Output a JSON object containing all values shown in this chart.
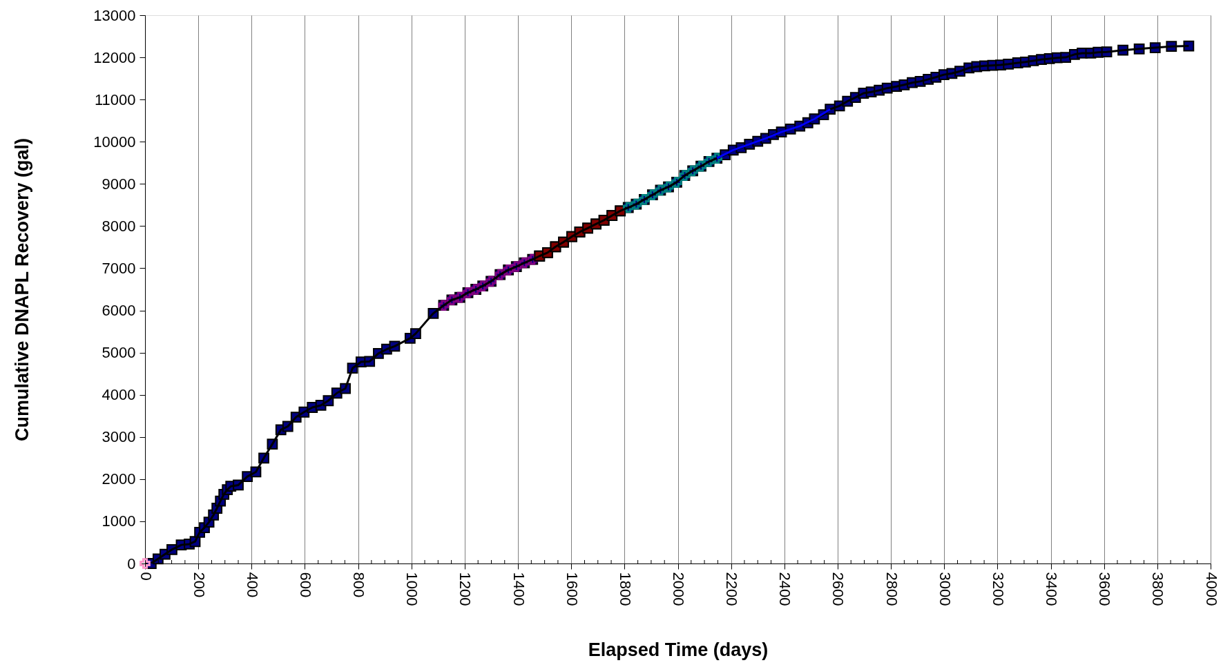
{
  "chart_data": {
    "type": "line",
    "xlabel": "Elapsed Time (days)",
    "ylabel": "Cumulative DNAPL Recovery (gal)",
    "xlim": [
      0,
      4000
    ],
    "ylim": [
      0,
      13000
    ],
    "xticks": [
      0,
      {
        "value": 50,
        "label": null
      },
      {
        "value": 100,
        "label": null
      },
      {
        "value": 150,
        "label": null
      },
      200,
      {
        "value": 250,
        "label": null
      },
      {
        "value": 300,
        "label": null
      },
      {
        "value": 350,
        "label": null
      },
      400,
      {
        "value": 450,
        "label": null
      },
      {
        "value": 500,
        "label": null
      },
      {
        "value": 550,
        "label": null
      },
      600,
      {
        "value": 650,
        "label": null
      },
      {
        "value": 700,
        "label": null
      },
      {
        "value": 750,
        "label": null
      },
      800,
      {
        "value": 850,
        "label": null
      },
      {
        "value": 900,
        "label": null
      },
      {
        "value": 950,
        "label": null
      },
      1000,
      {
        "value": 1050,
        "label": null
      },
      {
        "value": 1100,
        "label": null
      },
      {
        "value": 1150,
        "label": null
      },
      1200,
      {
        "value": 1250,
        "label": null
      },
      {
        "value": 1300,
        "label": null
      },
      {
        "value": 1350,
        "label": null
      },
      1400,
      {
        "value": 1450,
        "label": null
      },
      {
        "value": 1500,
        "label": null
      },
      {
        "value": 1550,
        "label": null
      },
      1600,
      {
        "value": 1650,
        "label": null
      },
      {
        "value": 1700,
        "label": null
      },
      {
        "value": 1750,
        "label": null
      },
      1800,
      {
        "value": 1850,
        "label": null
      },
      {
        "value": 1900,
        "label": null
      },
      {
        "value": 1950,
        "label": null
      },
      2000,
      {
        "value": 2050,
        "label": null
      },
      {
        "value": 2100,
        "label": null
      },
      {
        "value": 2150,
        "label": null
      },
      2200,
      {
        "value": 2250,
        "label": null
      },
      {
        "value": 2300,
        "label": null
      },
      {
        "value": 2350,
        "label": null
      },
      2400,
      {
        "value": 2450,
        "label": null
      },
      {
        "value": 2500,
        "label": null
      },
      {
        "value": 2550,
        "label": null
      },
      2600,
      {
        "value": 2650,
        "label": null
      },
      {
        "value": 2700,
        "label": null
      },
      {
        "value": 2750,
        "label": null
      },
      2800,
      {
        "value": 2850,
        "label": null
      },
      {
        "value": 2900,
        "label": null
      },
      {
        "value": 2950,
        "label": null
      },
      3000,
      {
        "value": 3050,
        "label": null
      },
      {
        "value": 3100,
        "label": null
      },
      {
        "value": 3150,
        "label": null
      },
      3200,
      {
        "value": 3250,
        "label": null
      },
      {
        "value": 3300,
        "label": null
      },
      {
        "value": 3350,
        "label": null
      },
      3400,
      {
        "value": 3450,
        "label": null
      },
      {
        "value": 3500,
        "label": null
      },
      {
        "value": 3550,
        "label": null
      },
      3600,
      {
        "value": 3650,
        "label": null
      },
      {
        "value": 3700,
        "label": null
      },
      {
        "value": 3750,
        "label": null
      },
      3800,
      {
        "value": 3850,
        "label": null
      },
      {
        "value": 3900,
        "label": null
      },
      {
        "value": 3950,
        "label": null
      },
      4000
    ],
    "yticks": [
      0,
      1000,
      2000,
      3000,
      4000,
      5000,
      6000,
      7000,
      8000,
      9000,
      10000,
      11000,
      12000,
      13000
    ],
    "grid": "x",
    "line_style": "solid",
    "series": [
      {
        "color": "#000000",
        "x": [
          23,
          49,
          75,
          101,
          136,
          166,
          188,
          205,
          223,
          240,
          257,
          270,
          283,
          296,
          309,
          322,
          350,
          384,
          416,
          446,
          478,
          510,
          536,
          567,
          597,
          628,
          660,
          688,
          720,
          752,
          779,
          811,
          843,
          876,
          907,
          937,
          995,
          1016,
          1082,
          1121,
          1152,
          1182,
          1212,
          1242,
          1268,
          1299,
          1333,
          1364,
          1394,
          1424,
          1455,
          1481,
          1511,
          1541,
          1571,
          1602,
          1632,
          1662,
          1693,
          1723,
          1753,
          1784,
          1814,
          1844,
          1874,
          1905,
          1935,
          1965,
          1996,
          2026,
          2056,
          2087,
          2117,
          2147,
          2178,
          2208,
          2238,
          2269,
          2300,
          2330,
          2359,
          2389,
          2423,
          2458,
          2488,
          2513,
          2547,
          2572,
          2607,
          2637,
          2667,
          2697,
          2726,
          2756,
          2786,
          2821,
          2850,
          2880,
          2910,
          2940,
          2969,
          2999,
          3029,
          3059,
          3093,
          3122,
          3152,
          3182,
          3212,
          3241,
          3276,
          3305,
          3335,
          3365,
          3395,
          3424,
          3456,
          3489,
          3518,
          3550,
          3578,
          3610,
          3671,
          3732,
          3792,
          3853,
          3918
        ],
        "values": [
          0,
          110,
          220,
          330,
          440,
          460,
          520,
          740,
          850,
          980,
          1150,
          1310,
          1480,
          1640,
          1750,
          1830,
          1860,
          2060,
          2170,
          2500,
          2830,
          3170,
          3250,
          3470,
          3590,
          3700,
          3750,
          3860,
          4040,
          4150,
          4630,
          4780,
          4790,
          4980,
          5080,
          5150,
          5340,
          5450,
          5930,
          6120,
          6250,
          6310,
          6420,
          6500,
          6580,
          6690,
          6850,
          6960,
          7040,
          7130,
          7210,
          7290,
          7370,
          7510,
          7620,
          7750,
          7860,
          7950,
          8050,
          8140,
          8250,
          8360,
          8440,
          8520,
          8630,
          8740,
          8850,
          8930,
          9040,
          9200,
          9310,
          9420,
          9530,
          9610,
          9690,
          9800,
          9860,
          9940,
          10010,
          10080,
          10170,
          10230,
          10300,
          10370,
          10450,
          10540,
          10640,
          10770,
          10850,
          10960,
          11050,
          11150,
          11180,
          11220,
          11270,
          11310,
          11350,
          11400,
          11430,
          11480,
          11530,
          11590,
          11620,
          11670,
          11750,
          11780,
          11800,
          11810,
          11820,
          11840,
          11870,
          11890,
          11920,
          11950,
          11970,
          11990,
          12000,
          12070,
          12100,
          12100,
          12120,
          12130,
          12170,
          12200,
          12230,
          12260,
          12270
        ]
      },
      {
        "type": "scatter",
        "marker": "square",
        "color": "#000080",
        "x": [
          23,
          49,
          75,
          101,
          136,
          166,
          188,
          205,
          223,
          240,
          257,
          270,
          283,
          296,
          309,
          322,
          350,
          384,
          416,
          446,
          478,
          510,
          536,
          567,
          597,
          628,
          660,
          688,
          720,
          752,
          779,
          811,
          843,
          876,
          907,
          937,
          995,
          1016,
          1082,
          1121,
          1152,
          1182,
          1212,
          1242,
          1268,
          1299,
          1333,
          1364,
          1394,
          1424,
          1455,
          1481,
          1511,
          1541,
          1571,
          1602,
          1632,
          1662,
          1693,
          1723,
          1753,
          1784,
          1814,
          1844,
          1874,
          1905,
          1935,
          1965,
          1996,
          2026,
          2056,
          2087,
          2117,
          2147,
          2178,
          2208,
          2238,
          2269,
          2300,
          2330,
          2359,
          2389,
          2423,
          2458,
          2488,
          2513,
          2547,
          2572,
          2607,
          2637,
          2667,
          2697,
          2726,
          2756,
          2786,
          2821,
          2850,
          2880,
          2910,
          2940,
          2969,
          2999,
          3029,
          3059,
          3093,
          3122,
          3152,
          3182,
          3212,
          3241,
          3276,
          3305,
          3335,
          3365,
          3395,
          3424,
          3456,
          3489,
          3518,
          3550,
          3578,
          3610,
          3671,
          3732,
          3792,
          3853,
          3918
        ],
        "values": [
          0,
          110,
          220,
          330,
          440,
          460,
          520,
          740,
          850,
          980,
          1150,
          1310,
          1480,
          1640,
          1750,
          1830,
          1860,
          2060,
          2170,
          2500,
          2830,
          3170,
          3250,
          3470,
          3590,
          3700,
          3750,
          3860,
          4040,
          4150,
          4630,
          4780,
          4790,
          4980,
          5080,
          5150,
          5340,
          5450,
          5930,
          6120,
          6250,
          6310,
          6420,
          6500,
          6580,
          6690,
          6850,
          6960,
          7040,
          7130,
          7210,
          7290,
          7370,
          7510,
          7620,
          7750,
          7860,
          7950,
          8050,
          8140,
          8250,
          8360,
          8440,
          8520,
          8630,
          8740,
          8850,
          8930,
          9040,
          9200,
          9310,
          9420,
          9530,
          9610,
          9690,
          9800,
          9860,
          9940,
          10010,
          10080,
          10170,
          10230,
          10300,
          10370,
          10450,
          10540,
          10640,
          10770,
          10850,
          10960,
          11050,
          11150,
          11180,
          11220,
          11270,
          11310,
          11350,
          11400,
          11430,
          11480,
          11530,
          11590,
          11620,
          11670,
          11750,
          11780,
          11800,
          11810,
          11820,
          11840,
          11870,
          11890,
          11920,
          11950,
          11970,
          11990,
          12000,
          12070,
          12100,
          12100,
          12120,
          12130,
          12170,
          12200,
          12230,
          12260,
          12270
        ]
      },
      {
        "type": "scatter",
        "marker": "cross",
        "color": "#800080",
        "x": [
          1121,
          1152,
          1182,
          1212,
          1242,
          1268,
          1299,
          1333,
          1364,
          1394,
          1424,
          1455
        ],
        "values": [
          6120,
          6250,
          6310,
          6420,
          6500,
          6580,
          6690,
          6850,
          6960,
          7040,
          7130,
          7210
        ]
      },
      {
        "type": "scatter",
        "marker": "square",
        "color": "#800000",
        "x": [
          1481,
          1511,
          1541,
          1571,
          1602,
          1632,
          1662,
          1693,
          1723,
          1753,
          1784
        ],
        "values": [
          7290,
          7370,
          7510,
          7620,
          7750,
          7860,
          7950,
          8050,
          8140,
          8250,
          8360
        ]
      },
      {
        "type": "scatter",
        "marker": "cross",
        "color": "#008080",
        "x": [
          1814,
          1844,
          1874,
          1905,
          1935,
          1965,
          1996,
          2026,
          2056,
          2087,
          2117,
          2147
        ],
        "values": [
          8440,
          8520,
          8630,
          8740,
          8850,
          8930,
          9040,
          9200,
          9310,
          9420,
          9530,
          9610
        ]
      },
      {
        "color": "#0000ff",
        "x": [
          2147,
          2208,
          2269,
          2330,
          2389,
          2458,
          2513,
          2572
        ],
        "values": [
          9610,
          9800,
          9940,
          10080,
          10230,
          10370,
          10540,
          10770
        ]
      },
      {
        "type": "scatter",
        "marker": "cross",
        "color": "#ff99cc",
        "x": [
          0
        ],
        "values": [
          0
        ]
      }
    ]
  }
}
